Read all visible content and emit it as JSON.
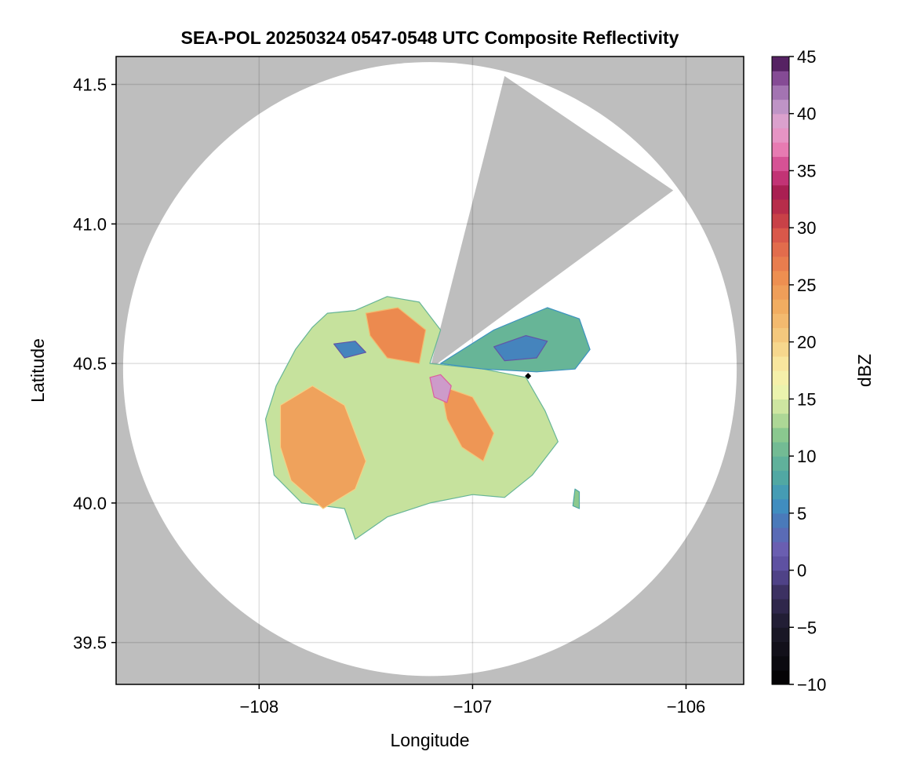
{
  "chart_data": {
    "type": "heatmap",
    "title": "SEA-POL 20250324 0547-0548 UTC Composite Reflectivity",
    "xlabel": "Longitude",
    "ylabel": "Latitude",
    "xlim": [
      -108.67,
      -105.73
    ],
    "ylim": [
      39.35,
      41.6
    ],
    "xticks": [
      -108,
      -107,
      -106
    ],
    "xtick_labels": [
      "−108",
      "−107",
      "−106"
    ],
    "yticks": [
      39.5,
      40.0,
      40.5,
      41.0,
      41.5
    ],
    "ytick_labels": [
      "39.5",
      "40.0",
      "40.5",
      "41.0",
      "41.5"
    ],
    "grid": true,
    "plot_background": "#bebebe",
    "coverage_fill": "#ffffff",
    "radar_center": {
      "lon": -107.2,
      "lat": 40.48
    },
    "coverage_radius_deg_lat": 1.1,
    "blocked_sector_lat_lon": [
      [
        -107.2,
        40.48
      ],
      [
        -106.85,
        41.53
      ],
      [
        -106.06,
        41.12
      ]
    ],
    "station_marker": {
      "lon": -106.74,
      "lat": 40.455,
      "shape": "diamond",
      "color": "#000000"
    },
    "colorbar": {
      "label": "dBZ",
      "range": [
        -10,
        45
      ],
      "ticks": [
        -10,
        -5,
        0,
        5,
        10,
        15,
        20,
        25,
        30,
        35,
        40,
        45
      ],
      "tick_labels": [
        "−10",
        "−5",
        "0",
        "5",
        "10",
        "15",
        "20",
        "25",
        "30",
        "35",
        "40",
        "45"
      ],
      "colormap_stops": [
        {
          "v": -10,
          "c": "#000000"
        },
        {
          "v": -5,
          "c": "#1c1a2a"
        },
        {
          "v": -2,
          "c": "#3a2f5e"
        },
        {
          "v": 0,
          "c": "#584a9a"
        },
        {
          "v": 2,
          "c": "#6b5fb2"
        },
        {
          "v": 4,
          "c": "#4d74b9"
        },
        {
          "v": 6,
          "c": "#3d93c0"
        },
        {
          "v": 8,
          "c": "#4fa7a4"
        },
        {
          "v": 10,
          "c": "#67b597"
        },
        {
          "v": 12,
          "c": "#8cc98e"
        },
        {
          "v": 14,
          "c": "#c6e29d"
        },
        {
          "v": 16,
          "c": "#f3f7b2"
        },
        {
          "v": 18,
          "c": "#f8e8a0"
        },
        {
          "v": 20,
          "c": "#f5cf84"
        },
        {
          "v": 23,
          "c": "#f1ae62"
        },
        {
          "v": 26,
          "c": "#ec8a4f"
        },
        {
          "v": 29,
          "c": "#de5f4b"
        },
        {
          "v": 31,
          "c": "#c33a46"
        },
        {
          "v": 33,
          "c": "#a71d4f"
        },
        {
          "v": 35,
          "c": "#ce3d86"
        },
        {
          "v": 37,
          "c": "#e97fb5"
        },
        {
          "v": 39,
          "c": "#e3a5cf"
        },
        {
          "v": 41,
          "c": "#b790c4"
        },
        {
          "v": 43,
          "c": "#8a4f9a"
        },
        {
          "v": 45,
          "c": "#3e0d4a"
        }
      ]
    },
    "echo_regions": [
      {
        "name": "main-echo-body",
        "dbz": 14,
        "lonlat": [
          [
            -107.68,
            40.68
          ],
          [
            -107.55,
            40.69
          ],
          [
            -107.4,
            40.74
          ],
          [
            -107.25,
            40.72
          ],
          [
            -107.15,
            40.62
          ],
          [
            -107.2,
            40.5
          ],
          [
            -106.95,
            40.48
          ],
          [
            -106.75,
            40.45
          ],
          [
            -106.66,
            40.33
          ],
          [
            -106.6,
            40.22
          ],
          [
            -106.72,
            40.1
          ],
          [
            -106.85,
            40.02
          ],
          [
            -107.0,
            40.03
          ],
          [
            -107.2,
            40.0
          ],
          [
            -107.4,
            39.95
          ],
          [
            -107.55,
            39.87
          ],
          [
            -107.6,
            39.98
          ],
          [
            -107.8,
            40.0
          ],
          [
            -107.93,
            40.1
          ],
          [
            -107.97,
            40.3
          ],
          [
            -107.92,
            40.42
          ],
          [
            -107.83,
            40.55
          ],
          [
            -107.75,
            40.63
          ]
        ]
      },
      {
        "name": "northeast-echo-body",
        "dbz": 10,
        "lonlat": [
          [
            -107.15,
            40.5
          ],
          [
            -106.9,
            40.62
          ],
          [
            -106.65,
            40.7
          ],
          [
            -106.5,
            40.66
          ],
          [
            -106.45,
            40.55
          ],
          [
            -106.52,
            40.48
          ],
          [
            -106.7,
            40.47
          ],
          [
            -106.95,
            40.48
          ]
        ]
      },
      {
        "name": "southwest-high-echo",
        "dbz": 24,
        "lonlat": [
          [
            -107.9,
            40.35
          ],
          [
            -107.75,
            40.42
          ],
          [
            -107.6,
            40.35
          ],
          [
            -107.5,
            40.15
          ],
          [
            -107.55,
            40.05
          ],
          [
            -107.7,
            39.98
          ],
          [
            -107.85,
            40.08
          ],
          [
            -107.9,
            40.2
          ]
        ]
      },
      {
        "name": "north-high-echo",
        "dbz": 26,
        "lonlat": [
          [
            -107.5,
            40.68
          ],
          [
            -107.35,
            40.7
          ],
          [
            -107.22,
            40.62
          ],
          [
            -107.25,
            40.5
          ],
          [
            -107.4,
            40.52
          ],
          [
            -107.48,
            40.6
          ]
        ]
      },
      {
        "name": "southeast-high-echo",
        "dbz": 25,
        "lonlat": [
          [
            -107.15,
            40.42
          ],
          [
            -107.0,
            40.38
          ],
          [
            -106.9,
            40.25
          ],
          [
            -106.95,
            40.15
          ],
          [
            -107.05,
            40.2
          ],
          [
            -107.12,
            40.3
          ]
        ]
      },
      {
        "name": "northeast-low-echo",
        "dbz": 5,
        "lonlat": [
          [
            -106.9,
            40.56
          ],
          [
            -106.75,
            40.6
          ],
          [
            -106.65,
            40.58
          ],
          [
            -106.7,
            40.52
          ],
          [
            -106.85,
            40.51
          ]
        ]
      },
      {
        "name": "northwest-low-echo",
        "dbz": 5,
        "lonlat": [
          [
            -107.65,
            40.57
          ],
          [
            -107.55,
            40.58
          ],
          [
            -107.5,
            40.54
          ],
          [
            -107.6,
            40.52
          ]
        ]
      },
      {
        "name": "core-echo",
        "dbz": 40,
        "lonlat": [
          [
            -107.2,
            40.45
          ],
          [
            -107.15,
            40.46
          ],
          [
            -107.1,
            40.42
          ],
          [
            -107.12,
            40.36
          ],
          [
            -107.18,
            40.38
          ]
        ]
      },
      {
        "name": "far-southeast-cell",
        "dbz": 12,
        "lonlat": [
          [
            -106.52,
            40.05
          ],
          [
            -106.5,
            40.04
          ],
          [
            -106.5,
            39.98
          ],
          [
            -106.53,
            39.99
          ]
        ]
      }
    ]
  }
}
